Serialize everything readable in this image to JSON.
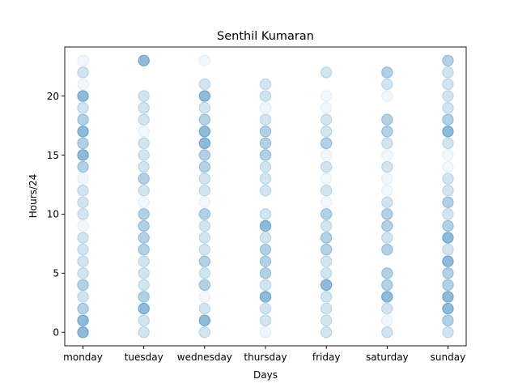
{
  "chart_data": {
    "type": "scatter",
    "title": "Senthil Kumaran",
    "xlabel": "Days",
    "ylabel": "Hours/24",
    "categories": [
      "monday",
      "tuesday",
      "wednesday",
      "thursday",
      "friday",
      "saturday",
      "sunday"
    ],
    "y_ticks": [
      0,
      5,
      10,
      15,
      20
    ],
    "ylim": [
      -1.15,
      24.15
    ],
    "marker_color": "#1f77b4",
    "points": [
      {
        "day": "monday",
        "hour": 0,
        "level": 3
      },
      {
        "day": "monday",
        "hour": 1,
        "level": 3
      },
      {
        "day": "monday",
        "hour": 2,
        "level": 2
      },
      {
        "day": "monday",
        "hour": 3,
        "level": 1
      },
      {
        "day": "monday",
        "hour": 4,
        "level": 2
      },
      {
        "day": "monday",
        "hour": 5,
        "level": 1
      },
      {
        "day": "monday",
        "hour": 6,
        "level": 1
      },
      {
        "day": "monday",
        "hour": 7,
        "level": 1
      },
      {
        "day": "monday",
        "hour": 8,
        "level": 1
      },
      {
        "day": "monday",
        "hour": 9,
        "level": 0
      },
      {
        "day": "monday",
        "hour": 10,
        "level": 1
      },
      {
        "day": "monday",
        "hour": 11,
        "level": 1
      },
      {
        "day": "monday",
        "hour": 12,
        "level": 1
      },
      {
        "day": "monday",
        "hour": 13,
        "level": 0
      },
      {
        "day": "monday",
        "hour": 14,
        "level": 2
      },
      {
        "day": "monday",
        "hour": 15,
        "level": 3
      },
      {
        "day": "monday",
        "hour": 16,
        "level": 2
      },
      {
        "day": "monday",
        "hour": 17,
        "level": 3
      },
      {
        "day": "monday",
        "hour": 18,
        "level": 2
      },
      {
        "day": "monday",
        "hour": 19,
        "level": 1
      },
      {
        "day": "monday",
        "hour": 20,
        "level": 3
      },
      {
        "day": "monday",
        "hour": 21,
        "level": 0
      },
      {
        "day": "monday",
        "hour": 22,
        "level": 1
      },
      {
        "day": "monday",
        "hour": 23,
        "level": 0
      },
      {
        "day": "tuesday",
        "hour": 0,
        "level": 1
      },
      {
        "day": "tuesday",
        "hour": 1,
        "level": 1
      },
      {
        "day": "tuesday",
        "hour": 2,
        "level": 3
      },
      {
        "day": "tuesday",
        "hour": 3,
        "level": 2
      },
      {
        "day": "tuesday",
        "hour": 4,
        "level": 1
      },
      {
        "day": "tuesday",
        "hour": 5,
        "level": 1
      },
      {
        "day": "tuesday",
        "hour": 6,
        "level": 1
      },
      {
        "day": "tuesday",
        "hour": 7,
        "level": 2
      },
      {
        "day": "tuesday",
        "hour": 8,
        "level": 2
      },
      {
        "day": "tuesday",
        "hour": 9,
        "level": 2
      },
      {
        "day": "tuesday",
        "hour": 10,
        "level": 2
      },
      {
        "day": "tuesday",
        "hour": 11,
        "level": 0
      },
      {
        "day": "tuesday",
        "hour": 12,
        "level": 1
      },
      {
        "day": "tuesday",
        "hour": 13,
        "level": 2
      },
      {
        "day": "tuesday",
        "hour": 14,
        "level": 1
      },
      {
        "day": "tuesday",
        "hour": 15,
        "level": 1
      },
      {
        "day": "tuesday",
        "hour": 16,
        "level": 1
      },
      {
        "day": "tuesday",
        "hour": 17,
        "level": 0
      },
      {
        "day": "tuesday",
        "hour": 18,
        "level": 1
      },
      {
        "day": "tuesday",
        "hour": 19,
        "level": 1
      },
      {
        "day": "tuesday",
        "hour": 20,
        "level": 1
      },
      {
        "day": "tuesday",
        "hour": 23,
        "level": 3
      },
      {
        "day": "wednesday",
        "hour": 0,
        "level": 1
      },
      {
        "day": "wednesday",
        "hour": 1,
        "level": 3
      },
      {
        "day": "wednesday",
        "hour": 2,
        "level": 1
      },
      {
        "day": "wednesday",
        "hour": 3,
        "level": 0
      },
      {
        "day": "wednesday",
        "hour": 4,
        "level": 2
      },
      {
        "day": "wednesday",
        "hour": 5,
        "level": 1
      },
      {
        "day": "wednesday",
        "hour": 6,
        "level": 2
      },
      {
        "day": "wednesday",
        "hour": 7,
        "level": 1
      },
      {
        "day": "wednesday",
        "hour": 8,
        "level": 1
      },
      {
        "day": "wednesday",
        "hour": 9,
        "level": 1
      },
      {
        "day": "wednesday",
        "hour": 10,
        "level": 2
      },
      {
        "day": "wednesday",
        "hour": 11,
        "level": 0
      },
      {
        "day": "wednesday",
        "hour": 12,
        "level": 1
      },
      {
        "day": "wednesday",
        "hour": 13,
        "level": 1
      },
      {
        "day": "wednesday",
        "hour": 14,
        "level": 2
      },
      {
        "day": "wednesday",
        "hour": 15,
        "level": 2
      },
      {
        "day": "wednesday",
        "hour": 16,
        "level": 3
      },
      {
        "day": "wednesday",
        "hour": 17,
        "level": 3
      },
      {
        "day": "wednesday",
        "hour": 18,
        "level": 2
      },
      {
        "day": "wednesday",
        "hour": 19,
        "level": 1
      },
      {
        "day": "wednesday",
        "hour": 20,
        "level": 3
      },
      {
        "day": "wednesday",
        "hour": 21,
        "level": 1
      },
      {
        "day": "wednesday",
        "hour": 23,
        "level": 0
      },
      {
        "day": "thursday",
        "hour": 0,
        "level": 0
      },
      {
        "day": "thursday",
        "hour": 1,
        "level": 1
      },
      {
        "day": "thursday",
        "hour": 2,
        "level": 1
      },
      {
        "day": "thursday",
        "hour": 3,
        "level": 3
      },
      {
        "day": "thursday",
        "hour": 4,
        "level": 1
      },
      {
        "day": "thursday",
        "hour": 5,
        "level": 2
      },
      {
        "day": "thursday",
        "hour": 6,
        "level": 2
      },
      {
        "day": "thursday",
        "hour": 7,
        "level": 2
      },
      {
        "day": "thursday",
        "hour": 8,
        "level": 1
      },
      {
        "day": "thursday",
        "hour": 9,
        "level": 3
      },
      {
        "day": "thursday",
        "hour": 10,
        "level": 1
      },
      {
        "day": "thursday",
        "hour": 12,
        "level": 1
      },
      {
        "day": "thursday",
        "hour": 13,
        "level": 1
      },
      {
        "day": "thursday",
        "hour": 14,
        "level": 1
      },
      {
        "day": "thursday",
        "hour": 15,
        "level": 2
      },
      {
        "day": "thursday",
        "hour": 16,
        "level": 2
      },
      {
        "day": "thursday",
        "hour": 17,
        "level": 2
      },
      {
        "day": "thursday",
        "hour": 18,
        "level": 1
      },
      {
        "day": "thursday",
        "hour": 19,
        "level": 0
      },
      {
        "day": "thursday",
        "hour": 20,
        "level": 1
      },
      {
        "day": "thursday",
        "hour": 21,
        "level": 1
      },
      {
        "day": "friday",
        "hour": 0,
        "level": 1
      },
      {
        "day": "friday",
        "hour": 1,
        "level": 1
      },
      {
        "day": "friday",
        "hour": 2,
        "level": 1
      },
      {
        "day": "friday",
        "hour": 3,
        "level": 1
      },
      {
        "day": "friday",
        "hour": 4,
        "level": 3
      },
      {
        "day": "friday",
        "hour": 5,
        "level": 1
      },
      {
        "day": "friday",
        "hour": 6,
        "level": 1
      },
      {
        "day": "friday",
        "hour": 7,
        "level": 2
      },
      {
        "day": "friday",
        "hour": 8,
        "level": 2
      },
      {
        "day": "friday",
        "hour": 9,
        "level": 1
      },
      {
        "day": "friday",
        "hour": 10,
        "level": 2
      },
      {
        "day": "friday",
        "hour": 11,
        "level": 0
      },
      {
        "day": "friday",
        "hour": 12,
        "level": 1
      },
      {
        "day": "friday",
        "hour": 13,
        "level": 0
      },
      {
        "day": "friday",
        "hour": 14,
        "level": 1
      },
      {
        "day": "friday",
        "hour": 15,
        "level": 0
      },
      {
        "day": "friday",
        "hour": 16,
        "level": 2
      },
      {
        "day": "friday",
        "hour": 17,
        "level": 1
      },
      {
        "day": "friday",
        "hour": 18,
        "level": 1
      },
      {
        "day": "friday",
        "hour": 19,
        "level": 0
      },
      {
        "day": "friday",
        "hour": 20,
        "level": 0
      },
      {
        "day": "friday",
        "hour": 22,
        "level": 1
      },
      {
        "day": "saturday",
        "hour": 0,
        "level": 1
      },
      {
        "day": "saturday",
        "hour": 1,
        "level": 0
      },
      {
        "day": "saturday",
        "hour": 2,
        "level": 1
      },
      {
        "day": "saturday",
        "hour": 3,
        "level": 3
      },
      {
        "day": "saturday",
        "hour": 4,
        "level": 2
      },
      {
        "day": "saturday",
        "hour": 5,
        "level": 2
      },
      {
        "day": "saturday",
        "hour": 7,
        "level": 2
      },
      {
        "day": "saturday",
        "hour": 8,
        "level": 1
      },
      {
        "day": "saturday",
        "hour": 9,
        "level": 2
      },
      {
        "day": "saturday",
        "hour": 10,
        "level": 2
      },
      {
        "day": "saturday",
        "hour": 11,
        "level": 1
      },
      {
        "day": "saturday",
        "hour": 12,
        "level": 0
      },
      {
        "day": "saturday",
        "hour": 13,
        "level": 0
      },
      {
        "day": "saturday",
        "hour": 14,
        "level": 1
      },
      {
        "day": "saturday",
        "hour": 15,
        "level": 0
      },
      {
        "day": "saturday",
        "hour": 16,
        "level": 1
      },
      {
        "day": "saturday",
        "hour": 17,
        "level": 2
      },
      {
        "day": "saturday",
        "hour": 18,
        "level": 2
      },
      {
        "day": "saturday",
        "hour": 20,
        "level": 0
      },
      {
        "day": "saturday",
        "hour": 21,
        "level": 1
      },
      {
        "day": "saturday",
        "hour": 22,
        "level": 2
      },
      {
        "day": "sunday",
        "hour": 0,
        "level": 1
      },
      {
        "day": "sunday",
        "hour": 1,
        "level": 2
      },
      {
        "day": "sunday",
        "hour": 2,
        "level": 3
      },
      {
        "day": "sunday",
        "hour": 3,
        "level": 3
      },
      {
        "day": "sunday",
        "hour": 4,
        "level": 2
      },
      {
        "day": "sunday",
        "hour": 5,
        "level": 2
      },
      {
        "day": "sunday",
        "hour": 6,
        "level": 3
      },
      {
        "day": "sunday",
        "hour": 7,
        "level": 1
      },
      {
        "day": "sunday",
        "hour": 8,
        "level": 3
      },
      {
        "day": "sunday",
        "hour": 9,
        "level": 2
      },
      {
        "day": "sunday",
        "hour": 10,
        "level": 1
      },
      {
        "day": "sunday",
        "hour": 11,
        "level": 2
      },
      {
        "day": "sunday",
        "hour": 12,
        "level": 1
      },
      {
        "day": "sunday",
        "hour": 13,
        "level": 1
      },
      {
        "day": "sunday",
        "hour": 14,
        "level": 0
      },
      {
        "day": "sunday",
        "hour": 15,
        "level": 0
      },
      {
        "day": "sunday",
        "hour": 16,
        "level": 1
      },
      {
        "day": "sunday",
        "hour": 17,
        "level": 3
      },
      {
        "day": "sunday",
        "hour": 18,
        "level": 2
      },
      {
        "day": "sunday",
        "hour": 19,
        "level": 1
      },
      {
        "day": "sunday",
        "hour": 20,
        "level": 1
      },
      {
        "day": "sunday",
        "hour": 21,
        "level": 1
      },
      {
        "day": "sunday",
        "hour": 22,
        "level": 1
      },
      {
        "day": "sunday",
        "hour": 23,
        "level": 2
      }
    ]
  }
}
